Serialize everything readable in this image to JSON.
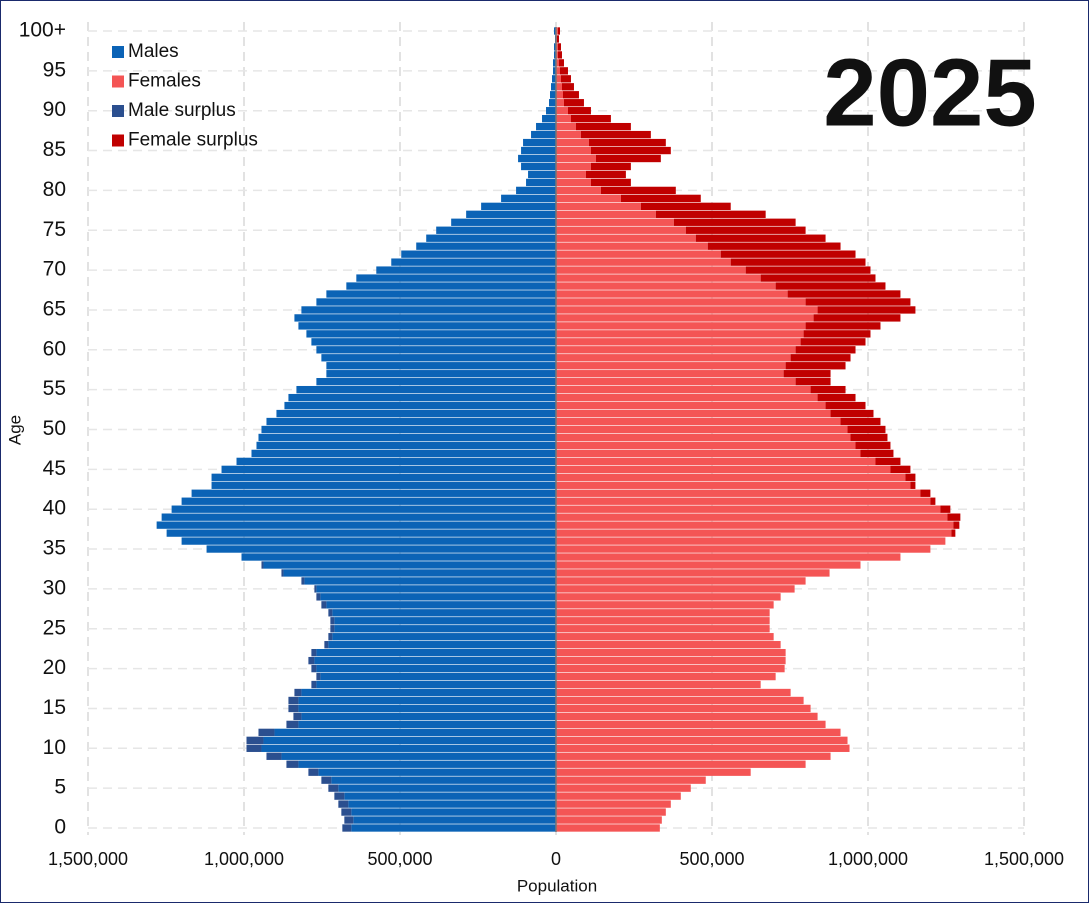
{
  "chart_data": {
    "type": "pyramid",
    "title": "2025",
    "x_label": "Population",
    "y_label": "Age",
    "categories": [
      "0",
      null,
      null,
      null,
      null,
      "5",
      null,
      null,
      null,
      null,
      "10",
      null,
      null,
      null,
      null,
      "15",
      null,
      null,
      null,
      null,
      "20",
      null,
      null,
      null,
      null,
      "25",
      null,
      null,
      null,
      null,
      "30",
      null,
      null,
      null,
      null,
      "35",
      null,
      null,
      null,
      null,
      "40",
      null,
      null,
      null,
      null,
      "45",
      null,
      null,
      null,
      null,
      "50",
      null,
      null,
      null,
      null,
      "55",
      null,
      null,
      null,
      null,
      "60",
      null,
      null,
      null,
      null,
      "65",
      null,
      null,
      null,
      null,
      "70",
      null,
      null,
      null,
      null,
      "75",
      null,
      null,
      null,
      null,
      "80",
      null,
      null,
      null,
      null,
      "85",
      null,
      null,
      null,
      null,
      "90",
      null,
      null,
      null,
      null,
      "95",
      null,
      null,
      null,
      null,
      "100+"
    ],
    "series": [
      {
        "name": "Males",
        "color": "#0b63b6",
        "values": [
          656000,
          649600,
          656000,
          665600,
          678400,
          697600,
          720000,
          761600,
          825600,
          880000,
          944000,
          937600,
          902400,
          825600,
          816000,
          825600,
          825600,
          816000,
          768000,
          755200,
          768000,
          774400,
          768000,
          729600,
          716800,
          710400,
          710400,
          716800,
          736000,
          755200,
          768000,
          806400,
          873600,
          937600,
          1008000,
          1120000,
          1200000,
          1248000,
          1280000,
          1264000,
          1232000,
          1200000,
          1168000,
          1104000,
          1104000,
          1072000,
          1024000,
          976000,
          960000,
          953600,
          944000,
          928000,
          896000,
          870400,
          857600,
          832000,
          768000,
          736000,
          736000,
          752000,
          768000,
          784000,
          800000,
          825600,
          838400,
          816000,
          768000,
          736000,
          672000,
          640000,
          576000,
          528000,
          496000,
          448000,
          416000,
          384000,
          336000,
          288000,
          240000,
          176000,
          128000,
          96000,
          89600,
          112000,
          121600,
          112000,
          105600,
          80000,
          64000,
          44800,
          32000,
          22400,
          19200,
          16000,
          12800,
          9600,
          9600,
          6400,
          6400,
          3200,
          6400
        ]
      },
      {
        "name": "Females",
        "color": "#f45555",
        "values": [
          332800,
          339200,
          352000,
          368000,
          400000,
          432000,
          480000,
          624000,
          800000,
          880000,
          940800,
          934400,
          912000,
          864000,
          838400,
          816000,
          793600,
          752000,
          656000,
          704000,
          732800,
          736000,
          736000,
          720000,
          697600,
          684800,
          684800,
          684800,
          697600,
          720000,
          764800,
          800000,
          876800,
          976000,
          1104000,
          1200000,
          1248000,
          1267200,
          1273600,
          1254400,
          1232000,
          1200000,
          1168000,
          1136000,
          1120000,
          1072000,
          1024000,
          976000,
          960000,
          944000,
          934400,
          912000,
          880000,
          864000,
          838400,
          816000,
          768000,
          729600,
          736000,
          752000,
          768000,
          784000,
          793600,
          800000,
          825600,
          838400,
          800000,
          742400,
          704000,
          656000,
          608000,
          560000,
          528000,
          486400,
          448000,
          416000,
          377600,
          320000,
          272000,
          208000,
          144000,
          112000,
          96000,
          112000,
          128000,
          112000,
          105600,
          80000,
          64000,
          48000,
          38400,
          25600,
          22400,
          19200,
          16000,
          12800,
          9600,
          6400,
          6400,
          3200,
          6400
        ]
      },
      {
        "name": "Male surplus",
        "color": "#2b4f8f",
        "values": [
          28800,
          28800,
          32000,
          32000,
          32000,
          32000,
          32000,
          32000,
          38400,
          48000,
          48000,
          54400,
          51200,
          38400,
          25600,
          32000,
          32000,
          22400,
          16000,
          12800,
          16000,
          19200,
          16000,
          12800,
          12800,
          12800,
          12800,
          12800,
          16000,
          12800,
          6400,
          9600,
          6400,
          6400,
          0,
          0,
          0,
          0,
          0,
          0,
          0,
          0,
          0,
          0,
          0,
          0,
          0,
          0,
          0,
          0,
          0,
          0,
          0,
          0,
          0,
          0,
          0,
          0,
          0,
          0,
          0,
          0,
          0,
          0,
          0,
          0,
          0,
          0,
          0,
          0,
          0,
          0,
          0,
          0,
          0,
          0,
          0,
          0,
          0,
          0,
          0,
          0,
          0,
          0,
          0,
          0,
          0,
          0,
          0,
          0,
          0,
          0,
          0,
          0,
          0,
          0,
          0,
          0,
          0,
          0,
          0
        ]
      },
      {
        "name": "Female surplus",
        "color": "#c00000",
        "values": [
          0,
          0,
          0,
          0,
          0,
          0,
          0,
          0,
          0,
          0,
          0,
          0,
          0,
          0,
          0,
          0,
          0,
          0,
          0,
          0,
          0,
          0,
          0,
          0,
          0,
          0,
          0,
          0,
          0,
          0,
          0,
          0,
          0,
          0,
          0,
          0,
          0,
          12800,
          19200,
          41600,
          32000,
          16000,
          32000,
          16000,
          32000,
          64000,
          80000,
          105600,
          112000,
          118400,
          121600,
          128000,
          137600,
          128000,
          121600,
          112000,
          112000,
          150400,
          192000,
          192000,
          192000,
          208000,
          214400,
          240000,
          278400,
          313600,
          336000,
          361600,
          352000,
          368000,
          400000,
          432000,
          432000,
          425600,
          416000,
          384000,
          390400,
          352000,
          288000,
          256000,
          240000,
          128000,
          128000,
          128000,
          208000,
          256000,
          246400,
          224000,
          176000,
          128000,
          73600,
          64000,
          51200,
          38400,
          32000,
          25600,
          16000,
          12800,
          9600,
          6400,
          6400
        ]
      }
    ],
    "xlim": [
      -1500000,
      1500000
    ],
    "xticks": [
      {
        "value": -1500000,
        "label": "1,500,000"
      },
      {
        "value": -1000000,
        "label": "1,000,000"
      },
      {
        "value": -500000,
        "label": "500,000"
      },
      0,
      {
        "value": 500000,
        "label": "500,000"
      },
      {
        "value": 1000000,
        "label": "1,000,000"
      },
      {
        "value": 1500000,
        "label": "1,500,000"
      }
    ],
    "grid": true,
    "legend": "upper left"
  }
}
